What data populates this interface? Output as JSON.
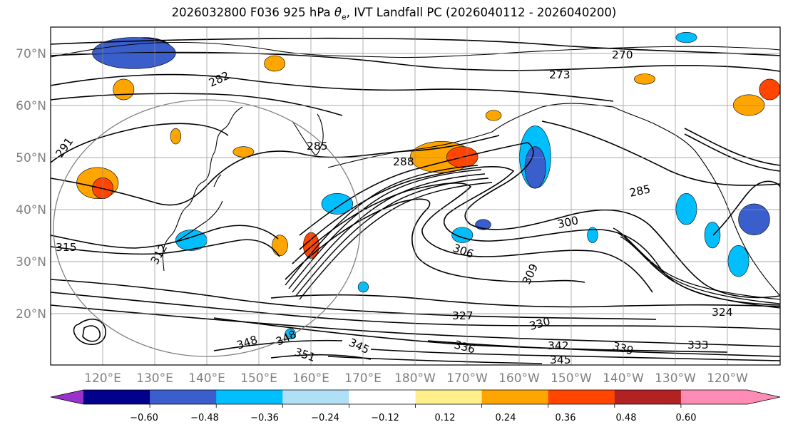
{
  "title": {
    "prefix": "2026032800 F036 925 hPa ",
    "theta_symbol": "θ",
    "theta_subscript": "e",
    "suffix": ", IVT Landfall PC (2026040112 - 2026040200)"
  },
  "map": {
    "lon_range": [
      110,
      250
    ],
    "lat_range": [
      10,
      75
    ],
    "grid": true,
    "lat_labels": [
      "20°N",
      "30°N",
      "40°N",
      "50°N",
      "60°N",
      "70°N"
    ],
    "lon_labels": [
      "120°E",
      "130°E",
      "140°E",
      "150°E",
      "160°E",
      "170°E",
      "180°W",
      "170°W",
      "160°W",
      "150°W",
      "140°W",
      "130°W",
      "120°W"
    ],
    "contour_variable": "925 hPa theta-e (K)",
    "contour_labels": [
      "270",
      "273",
      "282",
      "285",
      "285",
      "288",
      "291",
      "300",
      "306",
      "309",
      "312",
      "315",
      "324",
      "327",
      "330",
      "333",
      "336",
      "339",
      "342",
      "345",
      "345",
      "348",
      "348",
      "351"
    ]
  },
  "colorbar": {
    "extend": "both",
    "ticks": [
      "−0.60",
      "−0.48",
      "−0.36",
      "−0.24",
      "−0.12",
      "0.12",
      "0.24",
      "0.36",
      "0.48",
      "0.60"
    ],
    "colors": [
      "#9932cc",
      "#00008b",
      "#3a5fcd",
      "#00bfff",
      "#b0e0f6",
      "#ffffff",
      "#fff08c",
      "#ffa500",
      "#ff4500",
      "#b22222",
      "#ff8cb4",
      "#ff8cb4"
    ]
  },
  "fills": [
    {
      "lon": 128,
      "lat": 71,
      "rx": 5,
      "ry": 2,
      "level": "#00008b"
    },
    {
      "lon": 126,
      "lat": 70,
      "rx": 8,
      "ry": 3,
      "level": "#3a5fcd"
    },
    {
      "lon": 119,
      "lat": 45,
      "rx": 4,
      "ry": 3,
      "level": "#ffa500"
    },
    {
      "lon": 120,
      "lat": 44,
      "rx": 2,
      "ry": 2,
      "level": "#ff4500"
    },
    {
      "lon": 124,
      "lat": 63,
      "rx": 2,
      "ry": 2,
      "level": "#ffa500"
    },
    {
      "lon": 137,
      "lat": 34,
      "rx": 3,
      "ry": 2,
      "level": "#00bfff"
    },
    {
      "lon": 154,
      "lat": 33,
      "rx": 1.5,
      "ry": 2,
      "level": "#ffa500"
    },
    {
      "lon": 160,
      "lat": 33,
      "rx": 1.5,
      "ry": 2.5,
      "level": "#ff4500"
    },
    {
      "lon": 165,
      "lat": 41,
      "rx": 3,
      "ry": 2,
      "level": "#00bfff"
    },
    {
      "lon": 185,
      "lat": 50,
      "rx": 6,
      "ry": 3,
      "level": "#ffa500"
    },
    {
      "lon": 189,
      "lat": 50,
      "rx": 3,
      "ry": 2,
      "level": "#ff4500"
    },
    {
      "lon": 203,
      "lat": 50,
      "rx": 3,
      "ry": 6,
      "level": "#00bfff"
    },
    {
      "lon": 203,
      "lat": 48,
      "rx": 2,
      "ry": 4,
      "level": "#3a5fcd"
    },
    {
      "lon": 189,
      "lat": 35,
      "rx": 2,
      "ry": 1.5,
      "level": "#00bfff"
    },
    {
      "lon": 193,
      "lat": 37,
      "rx": 1.5,
      "ry": 1,
      "level": "#3a5fcd"
    },
    {
      "lon": 195,
      "lat": 58,
      "rx": 1.5,
      "ry": 1,
      "level": "#ffa500"
    },
    {
      "lon": 214,
      "lat": 35,
      "rx": 1,
      "ry": 1.5,
      "level": "#00bfff"
    },
    {
      "lon": 237,
      "lat": 35,
      "rx": 1.5,
      "ry": 2.5,
      "level": "#00bfff"
    },
    {
      "lon": 245,
      "lat": 38,
      "rx": 3,
      "ry": 3,
      "level": "#3a5fcd"
    },
    {
      "lon": 244,
      "lat": 60,
      "rx": 3,
      "ry": 2,
      "level": "#ffa500"
    },
    {
      "lon": 248,
      "lat": 63,
      "rx": 2,
      "ry": 2,
      "level": "#ff4500"
    },
    {
      "lon": 232,
      "lat": 40,
      "rx": 2,
      "ry": 3,
      "level": "#00bfff"
    },
    {
      "lon": 242,
      "lat": 30,
      "rx": 2,
      "ry": 3,
      "level": "#00bfff"
    },
    {
      "lon": 170,
      "lat": 25,
      "rx": 1,
      "ry": 1,
      "level": "#00bfff"
    },
    {
      "lon": 156,
      "lat": 16,
      "rx": 1,
      "ry": 1,
      "level": "#00bfff"
    },
    {
      "lon": 224,
      "lat": 65,
      "rx": 2,
      "ry": 1,
      "level": "#ffa500"
    },
    {
      "lon": 232,
      "lat": 73,
      "rx": 2,
      "ry": 1,
      "level": "#00bfff"
    },
    {
      "lon": 153,
      "lat": 68,
      "rx": 2,
      "ry": 1.5,
      "level": "#ffa500"
    },
    {
      "lon": 147,
      "lat": 51,
      "rx": 2,
      "ry": 1,
      "level": "#ffa500"
    },
    {
      "lon": 134,
      "lat": 54,
      "rx": 1,
      "ry": 1.5,
      "level": "#ffa500"
    }
  ]
}
